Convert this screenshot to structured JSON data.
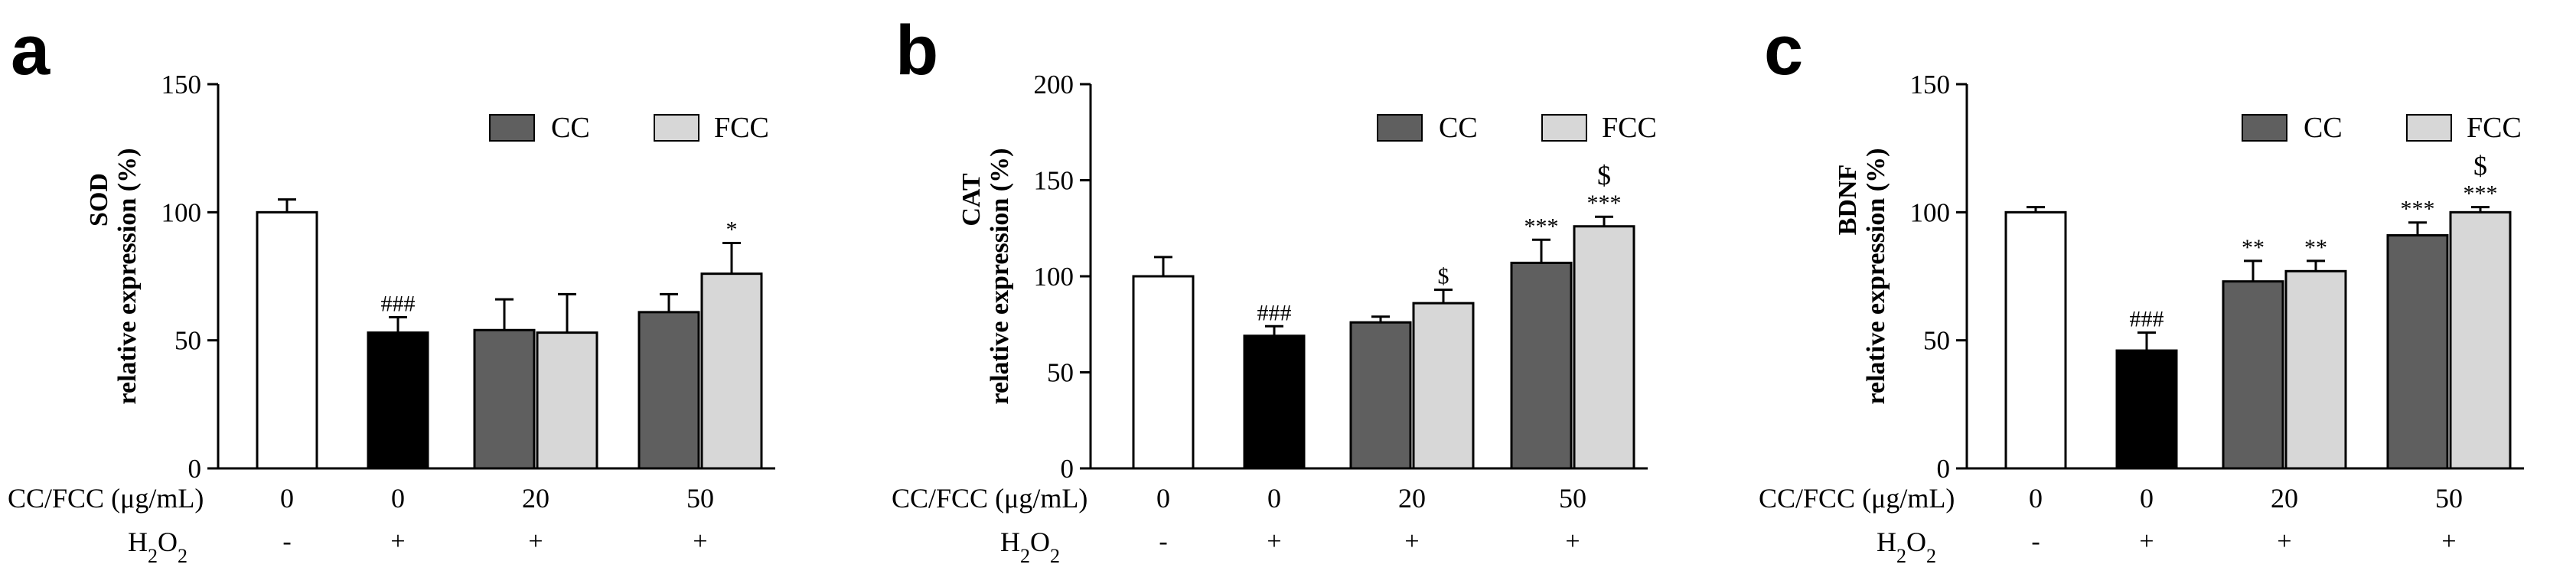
{
  "colors": {
    "control": "#ffffff",
    "h2o2": "#000000",
    "cc": "#5f5f5f",
    "fcc": "#d7d7d7",
    "stroke": "#000000"
  },
  "shared": {
    "dose_row_label": "CC/FCC (μg/mL)",
    "h2o2_row_label": {
      "prefix": "H",
      "sub1": "2",
      "mid": "O",
      "sub2": "2"
    },
    "group_doses": [
      "0",
      "0",
      "20",
      "50"
    ],
    "group_h2o2": [
      "-",
      "+",
      "+",
      "+"
    ],
    "legend": [
      "CC",
      "FCC"
    ]
  },
  "chart_data": [
    {
      "panel": "a",
      "type": "bar",
      "title": "",
      "ylabel_top": "SOD",
      "ylabel_bottom": "relative expression (%)",
      "ylim": [
        0,
        150
      ],
      "yticks": [
        0,
        50,
        100,
        150
      ],
      "bars": [
        {
          "group": 0,
          "series": "control",
          "value": 100,
          "err": 5,
          "annotation": ""
        },
        {
          "group": 1,
          "series": "h2o2",
          "value": 53,
          "err": 6,
          "annotation": "###"
        },
        {
          "group": 2,
          "series": "CC",
          "value": 54,
          "err": 12,
          "annotation": ""
        },
        {
          "group": 2,
          "series": "FCC",
          "value": 53,
          "err": 15,
          "annotation": ""
        },
        {
          "group": 3,
          "series": "CC",
          "value": 61,
          "err": 7,
          "annotation": ""
        },
        {
          "group": 3,
          "series": "FCC",
          "value": 76,
          "err": 12,
          "annotation": "*"
        }
      ]
    },
    {
      "panel": "b",
      "type": "bar",
      "title": "",
      "ylabel_top": "CAT",
      "ylabel_bottom": "relative expression (%)",
      "ylim": [
        0,
        200
      ],
      "yticks": [
        0,
        50,
        100,
        150,
        200
      ],
      "bars": [
        {
          "group": 0,
          "series": "control",
          "value": 100,
          "err": 10,
          "annotation": ""
        },
        {
          "group": 1,
          "series": "h2o2",
          "value": 69,
          "err": 5,
          "annotation": "###"
        },
        {
          "group": 2,
          "series": "CC",
          "value": 76,
          "err": 3,
          "annotation": ""
        },
        {
          "group": 2,
          "series": "FCC",
          "value": 86,
          "err": 7,
          "annotation": "$"
        },
        {
          "group": 3,
          "series": "CC",
          "value": 107,
          "err": 12,
          "annotation": "***"
        },
        {
          "group": 3,
          "series": "FCC",
          "value": 126,
          "err": 5,
          "annotation": "***",
          "annotation2": "$"
        }
      ]
    },
    {
      "panel": "c",
      "type": "bar",
      "title": "",
      "ylabel_top": "BDNF",
      "ylabel_bottom": "relative expression (%)",
      "ylim": [
        0,
        150
      ],
      "yticks": [
        0,
        50,
        100,
        150
      ],
      "bars": [
        {
          "group": 0,
          "series": "control",
          "value": 100,
          "err": 2,
          "annotation": ""
        },
        {
          "group": 1,
          "series": "h2o2",
          "value": 46,
          "err": 7,
          "annotation": "###"
        },
        {
          "group": 2,
          "series": "CC",
          "value": 73,
          "err": 8,
          "annotation": "**"
        },
        {
          "group": 2,
          "series": "FCC",
          "value": 77,
          "err": 4,
          "annotation": "**"
        },
        {
          "group": 3,
          "series": "CC",
          "value": 91,
          "err": 5,
          "annotation": "***"
        },
        {
          "group": 3,
          "series": "FCC",
          "value": 100,
          "err": 2,
          "annotation": "***",
          "annotation2": "$"
        }
      ]
    }
  ]
}
